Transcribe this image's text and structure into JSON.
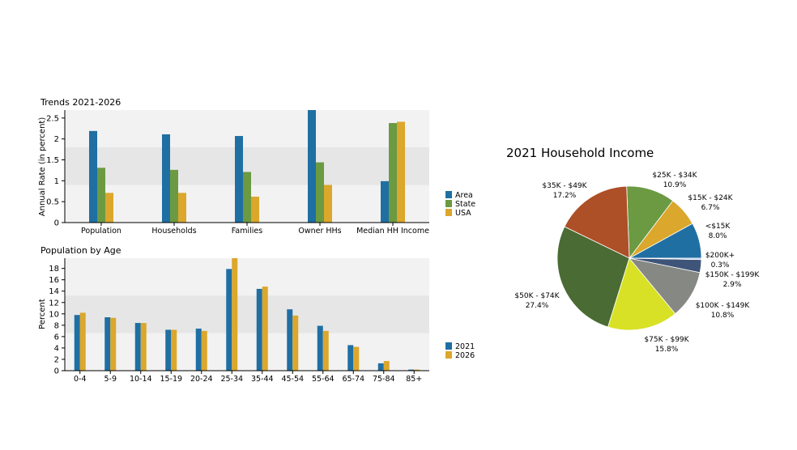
{
  "chart_data": [
    {
      "type": "bar",
      "title": "Trends 2021-2026",
      "ylabel": "Annual Rate (in percent)",
      "xlabel": "",
      "categories": [
        "Population",
        "Households",
        "Families",
        "Owner HHs",
        "Median HH Income"
      ],
      "series": [
        {
          "name": "Area",
          "color": "#1f6fa3",
          "values": [
            2.19,
            2.11,
            2.07,
            2.69,
            0.99
          ]
        },
        {
          "name": "State",
          "color": "#6b9a42",
          "values": [
            1.31,
            1.26,
            1.21,
            1.44,
            2.38
          ]
        },
        {
          "name": "USA",
          "color": "#dba72c",
          "values": [
            0.71,
            0.71,
            0.62,
            0.9,
            2.41
          ]
        }
      ],
      "ylim": [
        0,
        2.69
      ],
      "yticks": [
        "0",
        "0.5",
        "1",
        "1.5",
        "2",
        "2.5"
      ],
      "legend": "right"
    },
    {
      "type": "bar",
      "title": "Population by Age",
      "ylabel": "Percent",
      "xlabel": "",
      "categories": [
        "0-4",
        "5-9",
        "10-14",
        "15-19",
        "20-24",
        "25-34",
        "35-44",
        "45-54",
        "55-64",
        "65-74",
        "75-84",
        "85+"
      ],
      "series": [
        {
          "name": "2021",
          "color": "#1f6fa3",
          "values": [
            9.8,
            9.4,
            8.4,
            7.2,
            7.4,
            17.9,
            14.4,
            10.8,
            7.9,
            4.5,
            1.3,
            0.2
          ]
        },
        {
          "name": "2026",
          "color": "#dba72c",
          "values": [
            10.2,
            9.3,
            8.4,
            7.2,
            7.0,
            19.8,
            14.8,
            9.7,
            7.0,
            4.2,
            1.7,
            0.2
          ]
        }
      ],
      "ylim": [
        0,
        19.8
      ],
      "yticks": [
        "0",
        "2",
        "4",
        "6",
        "8",
        "10",
        "12",
        "14",
        "16",
        "18"
      ],
      "legend": "right"
    },
    {
      "type": "pie",
      "title": "2021 Household Income",
      "slices": [
        {
          "label": "<$15K",
          "value": 8.0,
          "value_label": "8.0%",
          "color": "#1f6fa3"
        },
        {
          "label": "$15K - $24K",
          "value": 6.7,
          "value_label": "6.7%",
          "color": "#dba72c"
        },
        {
          "label": "$25K - $34K",
          "value": 10.9,
          "value_label": "10.9%",
          "color": "#6b9a42"
        },
        {
          "label": "$35K - $49K",
          "value": 17.2,
          "value_label": "17.2%",
          "color": "#ad4f27"
        },
        {
          "label": "$50K - $74K",
          "value": 27.4,
          "value_label": "27.4%",
          "color": "#4a6b33"
        },
        {
          "label": "$75K - $99K",
          "value": 15.8,
          "value_label": "15.8%",
          "color": "#d8e125"
        },
        {
          "label": "$100K - $149K",
          "value": 10.8,
          "value_label": "10.8%",
          "color": "#868883"
        },
        {
          "label": "$150K - $199K",
          "value": 2.9,
          "value_label": "2.9%",
          "color": "#3f5479"
        },
        {
          "label": "$200K+",
          "value": 0.3,
          "value_label": "0.3%",
          "color": "#a9c6e8"
        }
      ]
    }
  ]
}
